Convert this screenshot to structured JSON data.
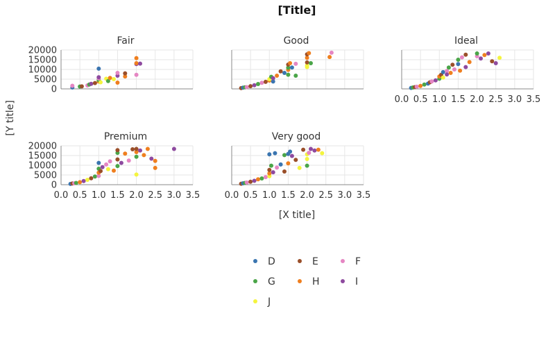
{
  "chart_data": {
    "type": "scatter",
    "title": "[Title]",
    "xlabel": "[X title]",
    "ylabel": "[Y title]",
    "xlim": [
      0,
      3.5
    ],
    "ylim": [
      0,
      20000
    ],
    "x_ticks": [
      "0.0",
      "0.5",
      "1.0",
      "1.5",
      "2.0",
      "2.5",
      "3.0",
      "3.5"
    ],
    "y_ticks": [
      "0",
      "5000",
      "10000",
      "15000",
      "20000"
    ],
    "grid": true,
    "legend_position": "bottom-center",
    "legend": [
      {
        "name": "D",
        "color": "#3a75b0"
      },
      {
        "name": "E",
        "color": "#9a4f2a"
      },
      {
        "name": "F",
        "color": "#e586c3"
      },
      {
        "name": "G",
        "color": "#4aa548"
      },
      {
        "name": "H",
        "color": "#ef7f1f"
      },
      {
        "name": "I",
        "color": "#8e4a9f"
      },
      {
        "name": "J",
        "color": "#f4f43e"
      }
    ],
    "facets": [
      {
        "name": "Fair",
        "points": [
          [
            0.3,
            700,
            "D"
          ],
          [
            0.3,
            1600,
            "F"
          ],
          [
            0.5,
            1200,
            "G"
          ],
          [
            0.55,
            1300,
            "E"
          ],
          [
            0.7,
            1800,
            "F"
          ],
          [
            0.75,
            2200,
            "G"
          ],
          [
            0.8,
            2600,
            "I"
          ],
          [
            0.9,
            3000,
            "E"
          ],
          [
            1.0,
            3800,
            "H"
          ],
          [
            1.0,
            4500,
            "G"
          ],
          [
            1.0,
            5400,
            "F"
          ],
          [
            1.0,
            6000,
            "I"
          ],
          [
            1.0,
            10400,
            "D"
          ],
          [
            1.05,
            3400,
            "J"
          ],
          [
            1.2,
            5200,
            "J"
          ],
          [
            1.25,
            4000,
            "G"
          ],
          [
            1.3,
            5600,
            "H"
          ],
          [
            1.4,
            5000,
            "J"
          ],
          [
            1.5,
            3200,
            "H"
          ],
          [
            1.5,
            6800,
            "I"
          ],
          [
            1.5,
            8200,
            "F"
          ],
          [
            1.7,
            6400,
            "H"
          ],
          [
            1.7,
            8000,
            "E"
          ],
          [
            2.0,
            7200,
            "F"
          ],
          [
            2.0,
            12800,
            "I"
          ],
          [
            2.0,
            13200,
            "H"
          ],
          [
            2.0,
            15800,
            "H"
          ],
          [
            2.1,
            13000,
            "I"
          ]
        ]
      },
      {
        "name": "Good",
        "points": [
          [
            0.25,
            400,
            "E"
          ],
          [
            0.3,
            600,
            "D"
          ],
          [
            0.35,
            800,
            "G"
          ],
          [
            0.4,
            900,
            "F"
          ],
          [
            0.5,
            1400,
            "E"
          ],
          [
            0.6,
            1900,
            "I"
          ],
          [
            0.7,
            2500,
            "G"
          ],
          [
            0.8,
            3100,
            "F"
          ],
          [
            0.9,
            3600,
            "E"
          ],
          [
            1.0,
            4300,
            "H"
          ],
          [
            1.0,
            5000,
            "J"
          ],
          [
            1.05,
            6200,
            "G"
          ],
          [
            1.1,
            3800,
            "D"
          ],
          [
            1.1,
            5500,
            "I"
          ],
          [
            1.2,
            6800,
            "H"
          ],
          [
            1.3,
            9000,
            "E"
          ],
          [
            1.4,
            8200,
            "D"
          ],
          [
            1.5,
            7300,
            "G"
          ],
          [
            1.5,
            9800,
            "H"
          ],
          [
            1.5,
            10900,
            "G"
          ],
          [
            1.5,
            12500,
            "E"
          ],
          [
            1.55,
            13200,
            "H"
          ],
          [
            1.6,
            11000,
            "D"
          ],
          [
            1.7,
            6800,
            "G"
          ],
          [
            1.7,
            12900,
            "F"
          ],
          [
            2.0,
            11200,
            "J"
          ],
          [
            2.0,
            12000,
            "J"
          ],
          [
            2.0,
            13600,
            "E"
          ],
          [
            2.0,
            16000,
            "H"
          ],
          [
            2.0,
            17800,
            "E"
          ],
          [
            2.05,
            18400,
            "H"
          ],
          [
            2.1,
            13200,
            "G"
          ],
          [
            2.6,
            16400,
            "H"
          ],
          [
            2.65,
            18600,
            "F"
          ]
        ]
      },
      {
        "name": "Ideal",
        "points": [
          [
            0.25,
            500,
            "D"
          ],
          [
            0.3,
            700,
            "G"
          ],
          [
            0.35,
            900,
            "E"
          ],
          [
            0.4,
            1100,
            "F"
          ],
          [
            0.5,
            1500,
            "H"
          ],
          [
            0.6,
            2200,
            "G"
          ],
          [
            0.7,
            2700,
            "D"
          ],
          [
            0.75,
            3400,
            "E"
          ],
          [
            0.8,
            3800,
            "F"
          ],
          [
            0.9,
            4400,
            "I"
          ],
          [
            1.0,
            5200,
            "G"
          ],
          [
            1.0,
            6400,
            "H"
          ],
          [
            1.05,
            7200,
            "E"
          ],
          [
            1.1,
            5800,
            "J"
          ],
          [
            1.1,
            8600,
            "D"
          ],
          [
            1.2,
            9200,
            "F"
          ],
          [
            1.2,
            7400,
            "I"
          ],
          [
            1.25,
            11000,
            "G"
          ],
          [
            1.3,
            8200,
            "H"
          ],
          [
            1.35,
            12400,
            "E"
          ],
          [
            1.4,
            10000,
            "F"
          ],
          [
            1.5,
            12800,
            "D"
          ],
          [
            1.5,
            15000,
            "G"
          ],
          [
            1.55,
            9400,
            "H"
          ],
          [
            1.6,
            16200,
            "F"
          ],
          [
            1.7,
            11200,
            "I"
          ],
          [
            1.7,
            17600,
            "E"
          ],
          [
            1.8,
            13800,
            "H"
          ],
          [
            2.0,
            16800,
            "F"
          ],
          [
            2.0,
            18200,
            "G"
          ],
          [
            2.1,
            15600,
            "I"
          ],
          [
            2.2,
            17400,
            "H"
          ],
          [
            2.3,
            18200,
            "I"
          ],
          [
            2.4,
            14200,
            "E"
          ],
          [
            2.5,
            13200,
            "I"
          ],
          [
            2.6,
            16000,
            "J"
          ]
        ]
      },
      {
        "name": "Premium",
        "points": [
          [
            0.25,
            400,
            "D"
          ],
          [
            0.3,
            600,
            "E"
          ],
          [
            0.35,
            700,
            "F"
          ],
          [
            0.4,
            900,
            "G"
          ],
          [
            0.5,
            1300,
            "H"
          ],
          [
            0.6,
            1900,
            "I"
          ],
          [
            0.7,
            2500,
            "J"
          ],
          [
            0.8,
            3300,
            "E"
          ],
          [
            0.9,
            4200,
            "G"
          ],
          [
            1.0,
            4500,
            "F"
          ],
          [
            1.0,
            6200,
            "H"
          ],
          [
            1.0,
            8200,
            "G"
          ],
          [
            1.0,
            11200,
            "D"
          ],
          [
            1.05,
            7000,
            "E"
          ],
          [
            1.1,
            9000,
            "I"
          ],
          [
            1.2,
            10400,
            "F"
          ],
          [
            1.25,
            8000,
            "J"
          ],
          [
            1.3,
            12000,
            "F"
          ],
          [
            1.4,
            7200,
            "H"
          ],
          [
            1.5,
            9600,
            "G"
          ],
          [
            1.5,
            13000,
            "E"
          ],
          [
            1.5,
            16400,
            "G"
          ],
          [
            1.5,
            17800,
            "E"
          ],
          [
            1.6,
            11200,
            "I"
          ],
          [
            1.7,
            16000,
            "H"
          ],
          [
            1.8,
            12400,
            "F"
          ],
          [
            1.9,
            18200,
            "E"
          ],
          [
            2.0,
            5200,
            "J"
          ],
          [
            2.0,
            14400,
            "G"
          ],
          [
            2.0,
            16800,
            "H"
          ],
          [
            2.0,
            18400,
            "E"
          ],
          [
            2.1,
            17600,
            "I"
          ],
          [
            2.2,
            15200,
            "H"
          ],
          [
            2.3,
            18400,
            "H"
          ],
          [
            2.4,
            13400,
            "I"
          ],
          [
            2.5,
            8600,
            "H"
          ],
          [
            2.5,
            12200,
            "H"
          ],
          [
            3.0,
            18400,
            "I"
          ]
        ]
      },
      {
        "name": "Very good",
        "points": [
          [
            0.25,
            500,
            "E"
          ],
          [
            0.3,
            700,
            "D"
          ],
          [
            0.35,
            900,
            "G"
          ],
          [
            0.4,
            1100,
            "F"
          ],
          [
            0.5,
            1500,
            "E"
          ],
          [
            0.6,
            2000,
            "I"
          ],
          [
            0.7,
            2800,
            "H"
          ],
          [
            0.8,
            3200,
            "G"
          ],
          [
            0.9,
            3900,
            "F"
          ],
          [
            1.0,
            4400,
            "J"
          ],
          [
            1.0,
            5800,
            "H"
          ],
          [
            1.0,
            7600,
            "E"
          ],
          [
            1.0,
            15600,
            "D"
          ],
          [
            1.05,
            9800,
            "G"
          ],
          [
            1.1,
            6400,
            "I"
          ],
          [
            1.15,
            16200,
            "D"
          ],
          [
            1.2,
            8800,
            "F"
          ],
          [
            1.3,
            10400,
            "D"
          ],
          [
            1.4,
            6800,
            "E"
          ],
          [
            1.4,
            15200,
            "G"
          ],
          [
            1.5,
            11000,
            "H"
          ],
          [
            1.5,
            15800,
            "D"
          ],
          [
            1.55,
            17000,
            "D"
          ],
          [
            1.6,
            14800,
            "I"
          ],
          [
            1.7,
            12800,
            "E"
          ],
          [
            1.8,
            8600,
            "J"
          ],
          [
            1.9,
            18000,
            "E"
          ],
          [
            2.0,
            9800,
            "G"
          ],
          [
            2.0,
            13200,
            "J"
          ],
          [
            2.0,
            15600,
            "J"
          ],
          [
            2.05,
            16400,
            "F"
          ],
          [
            2.1,
            18400,
            "I"
          ],
          [
            2.2,
            17600,
            "I"
          ],
          [
            2.3,
            18000,
            "H"
          ],
          [
            2.4,
            16200,
            "J"
          ]
        ]
      }
    ]
  }
}
